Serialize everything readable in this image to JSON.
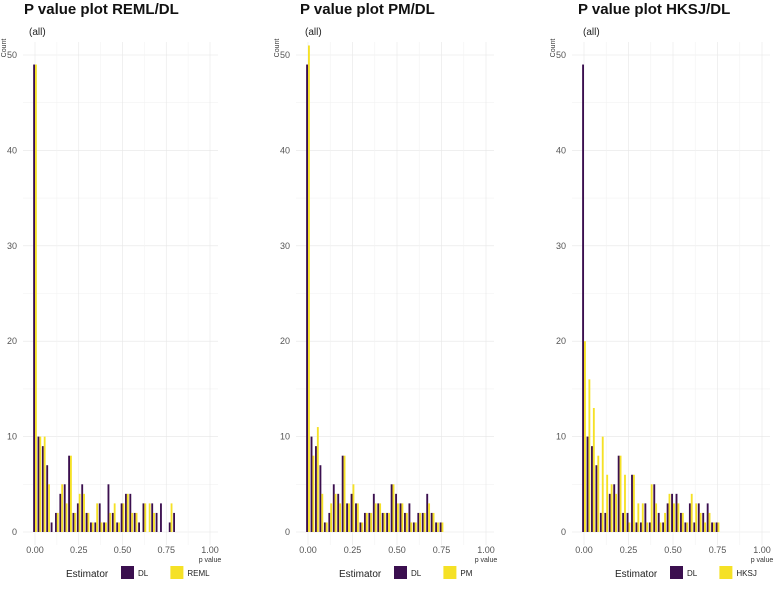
{
  "chart_data": [
    {
      "type": "bar",
      "title": "P value plot REML/DL",
      "subtitle": "(all)",
      "xlabel": "p value",
      "ylabel": "Count",
      "xlim": [
        0,
        1
      ],
      "ylim": [
        0,
        50
      ],
      "x_ticks": [
        "0.00",
        "0.25",
        "0.50",
        "0.75",
        "1.00"
      ],
      "y_ticks": [
        "0",
        "10",
        "20",
        "30",
        "40",
        "50"
      ],
      "legend": {
        "title": "Estimator",
        "position": "bottom"
      },
      "bin_centers": [
        0.0,
        0.025,
        0.05,
        0.075,
        0.1,
        0.125,
        0.15,
        0.175,
        0.2,
        0.225,
        0.25,
        0.275,
        0.3,
        0.325,
        0.35,
        0.375,
        0.4,
        0.425,
        0.45,
        0.475,
        0.5,
        0.525,
        0.55,
        0.575,
        0.6,
        0.625,
        0.65,
        0.675,
        0.7,
        0.725,
        0.75,
        0.775,
        0.8,
        0.825,
        0.85,
        0.875,
        0.9,
        0.925,
        0.95,
        0.975,
        1.0
      ],
      "series": [
        {
          "name": "DL",
          "color": "#3b0f4f",
          "values": [
            49,
            10,
            9,
            7,
            1,
            2,
            4,
            5,
            8,
            2,
            3,
            5,
            2,
            1,
            1,
            3,
            1,
            5,
            2,
            1,
            3,
            4,
            4,
            2,
            1,
            3,
            0,
            3,
            2,
            3,
            0,
            1,
            2,
            0,
            0,
            0,
            0,
            0,
            0,
            0,
            0
          ]
        },
        {
          "name": "REML",
          "color": "#f5e126",
          "values": [
            49,
            10,
            10,
            5,
            0,
            2,
            5,
            3,
            8,
            2,
            4,
            4,
            2,
            1,
            3,
            1,
            1,
            2,
            3,
            1,
            3,
            4,
            2,
            2,
            0,
            3,
            3,
            2,
            0,
            0,
            0,
            3,
            0,
            0,
            0,
            0,
            0,
            0,
            0,
            0,
            0
          ]
        }
      ]
    },
    {
      "type": "bar",
      "title": "P value plot PM/DL",
      "subtitle": "(all)",
      "xlabel": "p value",
      "ylabel": "Count",
      "xlim": [
        0,
        1
      ],
      "ylim": [
        0,
        50
      ],
      "x_ticks": [
        "0.00",
        "0.25",
        "0.50",
        "0.75",
        "1.00"
      ],
      "y_ticks": [
        "0",
        "10",
        "20",
        "30",
        "40",
        "50"
      ],
      "legend": {
        "title": "Estimator",
        "position": "bottom"
      },
      "bin_centers": [
        0.0,
        0.025,
        0.05,
        0.075,
        0.1,
        0.125,
        0.15,
        0.175,
        0.2,
        0.225,
        0.25,
        0.275,
        0.3,
        0.325,
        0.35,
        0.375,
        0.4,
        0.425,
        0.45,
        0.475,
        0.5,
        0.525,
        0.55,
        0.575,
        0.6,
        0.625,
        0.65,
        0.675,
        0.7,
        0.725,
        0.75,
        0.775,
        0.8,
        0.825,
        0.85,
        0.875,
        0.9,
        0.925,
        0.95,
        0.975,
        1.0
      ],
      "series": [
        {
          "name": "DL",
          "color": "#3b0f4f",
          "values": [
            49,
            10,
            9,
            7,
            1,
            2,
            5,
            4,
            8,
            3,
            4,
            3,
            1,
            2,
            2,
            4,
            3,
            2,
            2,
            5,
            4,
            3,
            2,
            3,
            1,
            2,
            2,
            4,
            2,
            1,
            1,
            0,
            0,
            0,
            0,
            0,
            0,
            0,
            0,
            0,
            0
          ]
        },
        {
          "name": "PM",
          "color": "#f5e126",
          "values": [
            51,
            8,
            11,
            4,
            1,
            3,
            4,
            3,
            8,
            3,
            5,
            3,
            1,
            2,
            2,
            3,
            3,
            2,
            2,
            5,
            3,
            3,
            2,
            1,
            1,
            2,
            2,
            3,
            2,
            1,
            1,
            0,
            0,
            0,
            0,
            0,
            0,
            0,
            0,
            0,
            0
          ]
        }
      ]
    },
    {
      "type": "bar",
      "title": "P value plot HKSJ/DL",
      "subtitle": "(all)",
      "xlabel": "p value",
      "ylabel": "Count",
      "xlim": [
        0,
        1
      ],
      "ylim": [
        0,
        50
      ],
      "x_ticks": [
        "0.00",
        "0.25",
        "0.50",
        "0.75",
        "1.00"
      ],
      "y_ticks": [
        "0",
        "10",
        "20",
        "30",
        "40",
        "50"
      ],
      "legend": {
        "title": "Estimator",
        "position": "bottom"
      },
      "bin_centers": [
        0.0,
        0.025,
        0.05,
        0.075,
        0.1,
        0.125,
        0.15,
        0.175,
        0.2,
        0.225,
        0.25,
        0.275,
        0.3,
        0.325,
        0.35,
        0.375,
        0.4,
        0.425,
        0.45,
        0.475,
        0.5,
        0.525,
        0.55,
        0.575,
        0.6,
        0.625,
        0.65,
        0.675,
        0.7,
        0.725,
        0.75,
        0.775,
        0.8,
        0.825,
        0.85,
        0.875,
        0.9,
        0.925,
        0.95,
        0.975,
        1.0
      ],
      "series": [
        {
          "name": "DL",
          "color": "#3b0f4f",
          "values": [
            49,
            10,
            9,
            7,
            2,
            2,
            4,
            5,
            8,
            2,
            2,
            6,
            1,
            1,
            3,
            1,
            5,
            2,
            1,
            3,
            4,
            4,
            2,
            1,
            3,
            1,
            3,
            2,
            3,
            1,
            1,
            0,
            0,
            0,
            0,
            0,
            0,
            0,
            0,
            0,
            0
          ]
        },
        {
          "name": "HKSJ",
          "color": "#f5e126",
          "values": [
            20,
            16,
            13,
            8,
            10,
            6,
            5,
            4,
            8,
            6,
            1,
            6,
            3,
            3,
            1,
            5,
            3,
            1,
            2,
            4,
            3,
            3,
            2,
            1,
            4,
            3,
            2,
            1,
            2,
            1,
            1,
            0,
            0,
            0,
            0,
            0,
            0,
            0,
            0,
            0,
            0
          ]
        }
      ]
    }
  ]
}
